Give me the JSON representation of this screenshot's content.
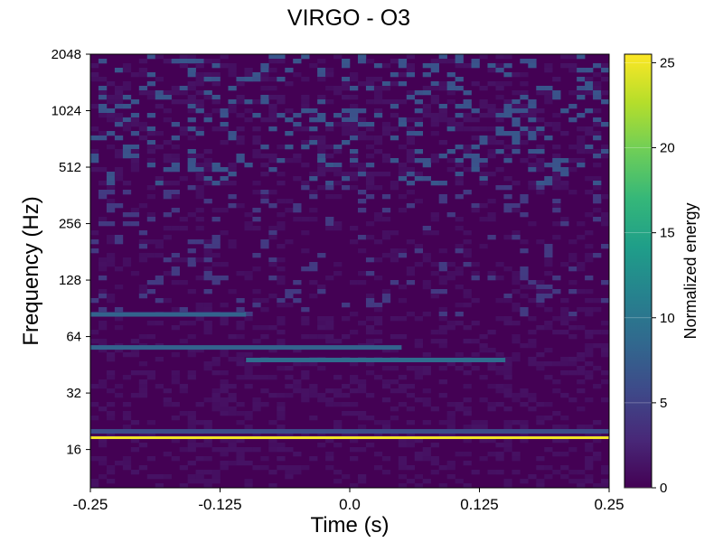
{
  "chart_data": {
    "type": "heatmap",
    "title": "VIRGO - O3",
    "xlabel": "Time (s)",
    "ylabel": "Frequency (Hz)",
    "xlim": [
      -0.25,
      0.25
    ],
    "ylim": [
      10,
      2048
    ],
    "yscale": "log2",
    "x_ticks": [
      -0.25,
      -0.125,
      0.0,
      0.125,
      0.25
    ],
    "x_tick_labels": [
      "-0.25",
      "-0.125",
      "0.0",
      "0.125",
      "0.25"
    ],
    "y_ticks": [
      16,
      32,
      64,
      128,
      256,
      512,
      1024,
      2048
    ],
    "y_tick_labels": [
      "16",
      "32",
      "64",
      "128",
      "256",
      "512",
      "1024",
      "2048"
    ],
    "colorbar": {
      "label": "Normalized energy",
      "range": [
        0,
        25.5
      ],
      "ticks": [
        0,
        5,
        10,
        15,
        20,
        25
      ],
      "tick_labels": [
        "0",
        "5",
        "10",
        "15",
        "20",
        "25"
      ],
      "colormap": "viridis"
    },
    "colors": [
      "#440154",
      "#482878",
      "#3e4989",
      "#31688e",
      "#26828e",
      "#1f9e89",
      "#35b779",
      "#6ece58",
      "#b5de2b",
      "#fde725"
    ],
    "features": [
      {
        "freq": 18.5,
        "t_start": -0.25,
        "t_end": 0.25,
        "peak_energy": 25,
        "desc": "persistent narrow line"
      },
      {
        "freq": 20,
        "t_start": -0.25,
        "t_end": 0.25,
        "peak_energy": 6
      },
      {
        "freq": 48,
        "t_start": -0.1,
        "t_end": 0.15,
        "peak_energy": 9
      },
      {
        "freq": 56,
        "t_start": -0.25,
        "t_end": 0.05,
        "peak_energy": 8
      },
      {
        "freq": 84,
        "t_start": -0.25,
        "t_end": -0.1,
        "peak_energy": 8
      }
    ]
  }
}
